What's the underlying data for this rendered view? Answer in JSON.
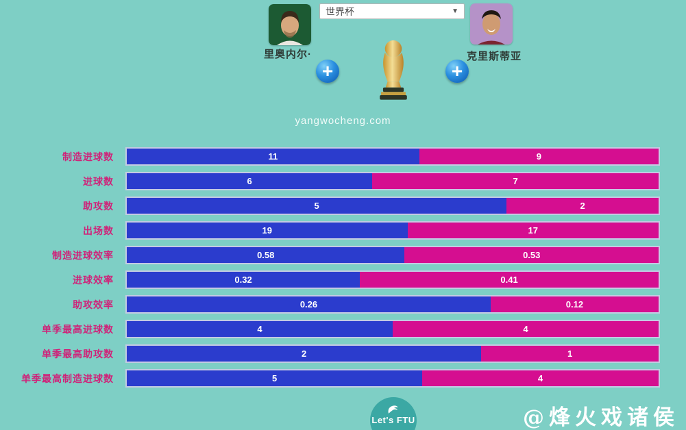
{
  "page": {
    "background_color": "#7ecfc5",
    "site_text": "yangwocheng.com",
    "watermark": "@烽火戏诸侯"
  },
  "header": {
    "player_left": {
      "name": "里奥内尔·"
    },
    "player_right": {
      "name": "克里斯蒂亚"
    },
    "competition_select": {
      "value": "世界杯",
      "arrow_glyph": "▼"
    },
    "add_button_glyph": "+",
    "trophy": "fifa-world-cup-trophy"
  },
  "chart_data": {
    "type": "bar",
    "orientation": "horizontal",
    "stacked": true,
    "value_labels": "inside-center",
    "categories": [
      "制造进球数",
      "进球数",
      "助攻数",
      "出场数",
      "制造进球效率",
      "进球效率",
      "助攻效率",
      "单季最高进球数",
      "单季最高助攻数",
      "单季最高制造进球数"
    ],
    "series": [
      {
        "name": "里奥内尔·",
        "color": "#2b3ccd",
        "values": [
          11,
          6,
          5,
          19,
          0.58,
          0.32,
          0.26,
          4,
          2,
          5
        ]
      },
      {
        "name": "克里斯蒂亚",
        "color": "#d50e90",
        "values": [
          9,
          7,
          2,
          17,
          0.53,
          0.41,
          0.12,
          4,
          1,
          4
        ]
      }
    ],
    "category_label_color": "#cf2379",
    "bar_border_color": "#c4cbe3"
  },
  "footer": {
    "logo_text": "Let's FTU"
  }
}
